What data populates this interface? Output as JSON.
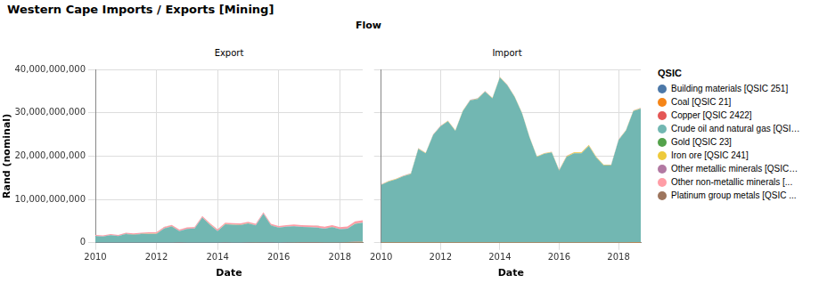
{
  "chart_data": {
    "type": "area",
    "title": "Western Cape Imports / Exports [Mining]",
    "facet_label": "Flow",
    "legend_title": "QSIC",
    "legend": "right",
    "x_label": "Date",
    "y_label": "Rand (nominal)",
    "stacked": true,
    "grid": true,
    "xlim": [
      2010,
      2018.75
    ],
    "xticks": [
      2010,
      2012,
      2014,
      2016,
      2018
    ],
    "ylim": [
      0,
      40000000000
    ],
    "yticks": [
      0,
      {
        "value": 10000000000,
        "label": "10,000,000,000"
      },
      {
        "value": 20000000000,
        "label": "20,000,000,000"
      },
      {
        "value": 30000000000,
        "label": "30,000,000,000"
      },
      {
        "value": 40000000000,
        "label": "40,000,000,000"
      }
    ],
    "x": [
      2010,
      2010.25,
      2010.5,
      2010.75,
      2011,
      2011.25,
      2011.5,
      2011.75,
      2012,
      2012.25,
      2012.5,
      2012.75,
      2013,
      2013.25,
      2013.5,
      2013.75,
      2014,
      2014.25,
      2014.5,
      2014.75,
      2015,
      2015.25,
      2015.5,
      2015.75,
      2016,
      2016.25,
      2016.5,
      2016.75,
      2017,
      2017.25,
      2017.5,
      2017.75,
      2018,
      2018.25,
      2018.5,
      2018.75
    ],
    "panels": [
      {
        "title": "Export",
        "series": [
          {
            "name": "Building materials [QSIC 251]",
            "color": "#4c78a8",
            "values": [
              60000000,
              55000000,
              60000000,
              65000000,
              60000000,
              60000000,
              65000000,
              60000000,
              55000000,
              60000000,
              60000000,
              65000000,
              60000000,
              60000000,
              65000000,
              60000000,
              60000000,
              60000000,
              55000000,
              60000000,
              60000000,
              65000000,
              60000000,
              60000000,
              55000000,
              60000000,
              60000000,
              65000000,
              60000000,
              60000000,
              55000000,
              60000000,
              60000000,
              65000000,
              60000000,
              60000000
            ]
          },
          {
            "name": "Coal [QSIC 21]",
            "color": "#f58518",
            "values": [
              10000000,
              10000000,
              12000000,
              10000000,
              15000000,
              12000000,
              10000000,
              12000000,
              15000000,
              12000000,
              10000000,
              15000000,
              12000000,
              15000000,
              10000000,
              12000000,
              15000000,
              20000000,
              18000000,
              15000000,
              20000000,
              25000000,
              20000000,
              18000000,
              20000000,
              25000000,
              30000000,
              25000000,
              30000000,
              40000000,
              35000000,
              45000000,
              60000000,
              80000000,
              120000000,
              150000000
            ]
          },
          {
            "name": "Copper [QSIC 2422]",
            "color": "#e45756",
            "values": [
              10000000,
              12000000,
              10000000,
              10000000,
              12000000,
              10000000,
              12000000,
              10000000,
              10000000,
              12000000,
              10000000,
              12000000,
              10000000,
              10000000,
              12000000,
              10000000,
              12000000,
              10000000,
              10000000,
              12000000,
              10000000,
              12000000,
              10000000,
              10000000,
              12000000,
              10000000,
              30000000,
              60000000,
              90000000,
              80000000,
              40000000,
              20000000,
              15000000,
              12000000,
              10000000,
              12000000
            ]
          },
          {
            "name": "Crude oil and natural gas [QSI…",
            "color": "#72b7b2",
            "values": [
              1450000000,
              1350000000,
              1650000000,
              1450000000,
              1950000000,
              1750000000,
              1950000000,
              2000000000,
              2000000000,
              3200000000,
              3700000000,
              2600000000,
              3100000000,
              3200000000,
              5700000000,
              4100000000,
              2600000000,
              4200000000,
              4100000000,
              4000000000,
              4400000000,
              3900000000,
              6600000000,
              3900000000,
              3400000000,
              3600000000,
              3700000000,
              3500000000,
              3400000000,
              3300000000,
              3100000000,
              3500000000,
              3000000000,
              3100000000,
              4200000000,
              4400000000
            ]
          },
          {
            "name": "Gold [QSIC 23]",
            "color": "#54a24b",
            "values": [
              5000000,
              5000000,
              5000000,
              5000000,
              5000000,
              5000000,
              5000000,
              5000000,
              5000000,
              5000000,
              5000000,
              5000000,
              5000000,
              5000000,
              5000000,
              5000000,
              5000000,
              5000000,
              5000000,
              5000000,
              5000000,
              5000000,
              5000000,
              5000000,
              5000000,
              5000000,
              5000000,
              5000000,
              5000000,
              5000000,
              5000000,
              5000000,
              5000000,
              5000000,
              5000000,
              5000000
            ]
          },
          {
            "name": "Iron ore [QSIC 241]",
            "color": "#eeca3b",
            "values": [
              8000000,
              8000000,
              8000000,
              8000000,
              8000000,
              8000000,
              8000000,
              8000000,
              8000000,
              8000000,
              8000000,
              8000000,
              8000000,
              8000000,
              8000000,
              8000000,
              8000000,
              8000000,
              8000000,
              8000000,
              8000000,
              8000000,
              8000000,
              8000000,
              8000000,
              8000000,
              8000000,
              8000000,
              8000000,
              8000000,
              8000000,
              8000000,
              8000000,
              8000000,
              8000000,
              8000000
            ]
          },
          {
            "name": "Other metallic minerals [QSIC…",
            "color": "#b279a2",
            "values": [
              40000000,
              40000000,
              40000000,
              40000000,
              40000000,
              40000000,
              40000000,
              40000000,
              40000000,
              40000000,
              40000000,
              40000000,
              40000000,
              40000000,
              40000000,
              40000000,
              40000000,
              40000000,
              40000000,
              40000000,
              40000000,
              40000000,
              40000000,
              40000000,
              40000000,
              40000000,
              40000000,
              40000000,
              40000000,
              40000000,
              40000000,
              40000000,
              40000000,
              40000000,
              40000000,
              40000000
            ]
          },
          {
            "name": "Other non-metallic minerals [...",
            "color": "#ff9da6",
            "values": [
              220000000,
              230000000,
              240000000,
              230000000,
              250000000,
              260000000,
              250000000,
              270000000,
              280000000,
              290000000,
              280000000,
              300000000,
              300000000,
              290000000,
              310000000,
              300000000,
              320000000,
              300000000,
              310000000,
              320000000,
              300000000,
              310000000,
              320000000,
              330000000,
              320000000,
              330000000,
              340000000,
              360000000,
              380000000,
              400000000,
              420000000,
              400000000,
              430000000,
              450000000,
              480000000,
              500000000
            ]
          },
          {
            "name": "Platinum group metals [QSIC ...",
            "color": "#9d755d",
            "values": [
              5000000,
              5000000,
              5000000,
              5000000,
              5000000,
              5000000,
              5000000,
              5000000,
              5000000,
              5000000,
              5000000,
              5000000,
              5000000,
              5000000,
              5000000,
              5000000,
              5000000,
              5000000,
              5000000,
              5000000,
              5000000,
              5000000,
              5000000,
              5000000,
              5000000,
              5000000,
              5000000,
              5000000,
              5000000,
              5000000,
              5000000,
              5000000,
              5000000,
              5000000,
              5000000,
              5000000
            ]
          }
        ]
      },
      {
        "title": "Import",
        "tick_labels": "x",
        "series": [
          {
            "name": "Building materials [QSIC 251]",
            "color": "#4c78a8",
            "values": [
              30000000,
              30000000,
              30000000,
              30000000,
              30000000,
              30000000,
              30000000,
              30000000,
              30000000,
              30000000,
              30000000,
              30000000,
              30000000,
              30000000,
              30000000,
              30000000,
              30000000,
              30000000,
              30000000,
              30000000,
              30000000,
              30000000,
              30000000,
              30000000,
              30000000,
              30000000,
              30000000,
              30000000,
              30000000,
              30000000,
              30000000,
              30000000,
              30000000,
              30000000,
              30000000,
              30000000
            ]
          },
          {
            "name": "Coal [QSIC 21]",
            "color": "#f58518",
            "values": [
              60000000,
              60000000,
              60000000,
              60000000,
              60000000,
              60000000,
              60000000,
              60000000,
              60000000,
              60000000,
              60000000,
              60000000,
              60000000,
              60000000,
              60000000,
              60000000,
              60000000,
              60000000,
              60000000,
              60000000,
              60000000,
              60000000,
              60000000,
              60000000,
              60000000,
              60000000,
              60000000,
              60000000,
              60000000,
              60000000,
              60000000,
              60000000,
              80000000,
              100000000,
              130000000,
              150000000
            ]
          },
          {
            "name": "Copper [QSIC 2422]",
            "color": "#e45756",
            "values": [
              5000000,
              5000000,
              5000000,
              5000000,
              5000000,
              5000000,
              5000000,
              5000000,
              5000000,
              5000000,
              5000000,
              5000000,
              5000000,
              5000000,
              5000000,
              5000000,
              5000000,
              5000000,
              5000000,
              5000000,
              5000000,
              5000000,
              5000000,
              5000000,
              5000000,
              5000000,
              5000000,
              5000000,
              5000000,
              5000000,
              5000000,
              5000000,
              5000000,
              5000000,
              5000000,
              5000000
            ]
          },
          {
            "name": "Crude oil and natural gas [QSI…",
            "color": "#72b7b2",
            "values": [
              13250000000,
              14050000000,
              14550000000,
              15250000000,
              15750000000,
              21550000000,
              20550000000,
              24750000000,
              26750000000,
              27950000000,
              25750000000,
              30250000000,
              32750000000,
              33050000000,
              34750000000,
              33250000000,
              38050000000,
              36250000000,
              33550000000,
              29750000000,
              24250000000,
              19750000000,
              20450000000,
              20750000000,
              16550000000,
              19750000000,
              20550000000,
              20550000000,
              22250000000,
              19550000000,
              17750000000,
              17750000000,
              23550000000,
              25750000000,
              30250000000,
              30750000000
            ]
          },
          {
            "name": "Gold [QSIC 23]",
            "color": "#54a24b",
            "values": [
              5000000,
              5000000,
              5000000,
              5000000,
              5000000,
              5000000,
              5000000,
              5000000,
              5000000,
              5000000,
              5000000,
              5000000,
              5000000,
              5000000,
              5000000,
              5000000,
              5000000,
              5000000,
              5000000,
              5000000,
              5000000,
              5000000,
              5000000,
              5000000,
              5000000,
              5000000,
              5000000,
              5000000,
              5000000,
              5000000,
              5000000,
              5000000,
              5000000,
              5000000,
              5000000,
              5000000
            ]
          },
          {
            "name": "Iron ore [QSIC 241]",
            "color": "#eeca3b",
            "values": [
              80000000,
              80000000,
              80000000,
              80000000,
              80000000,
              80000000,
              80000000,
              80000000,
              80000000,
              80000000,
              80000000,
              80000000,
              80000000,
              80000000,
              80000000,
              80000000,
              80000000,
              80000000,
              80000000,
              80000000,
              80000000,
              80000000,
              80000000,
              80000000,
              120000000,
              150000000,
              180000000,
              200000000,
              180000000,
              150000000,
              120000000,
              100000000,
              80000000,
              80000000,
              80000000,
              80000000
            ]
          },
          {
            "name": "Other metallic minerals [QSIC…",
            "color": "#b279a2",
            "values": [
              20000000,
              20000000,
              20000000,
              20000000,
              20000000,
              20000000,
              20000000,
              20000000,
              20000000,
              20000000,
              20000000,
              20000000,
              20000000,
              20000000,
              20000000,
              20000000,
              20000000,
              20000000,
              20000000,
              20000000,
              20000000,
              20000000,
              20000000,
              20000000,
              20000000,
              20000000,
              20000000,
              20000000,
              20000000,
              20000000,
              20000000,
              20000000,
              20000000,
              20000000,
              20000000,
              20000000
            ]
          },
          {
            "name": "Other non-metallic minerals [...",
            "color": "#ff9da6",
            "values": [
              50000000,
              50000000,
              50000000,
              50000000,
              50000000,
              50000000,
              50000000,
              50000000,
              50000000,
              50000000,
              50000000,
              50000000,
              50000000,
              50000000,
              50000000,
              50000000,
              50000000,
              50000000,
              50000000,
              50000000,
              50000000,
              50000000,
              50000000,
              50000000,
              50000000,
              50000000,
              50000000,
              50000000,
              50000000,
              50000000,
              50000000,
              50000000,
              50000000,
              50000000,
              50000000,
              50000000
            ]
          },
          {
            "name": "Platinum group metals [QSIC ...",
            "color": "#9d755d",
            "values": [
              5000000,
              5000000,
              5000000,
              5000000,
              5000000,
              5000000,
              5000000,
              5000000,
              5000000,
              5000000,
              5000000,
              5000000,
              5000000,
              5000000,
              5000000,
              5000000,
              5000000,
              5000000,
              5000000,
              5000000,
              5000000,
              5000000,
              5000000,
              5000000,
              5000000,
              5000000,
              5000000,
              5000000,
              5000000,
              5000000,
              5000000,
              5000000,
              5000000,
              5000000,
              5000000,
              5000000
            ]
          }
        ]
      }
    ]
  }
}
